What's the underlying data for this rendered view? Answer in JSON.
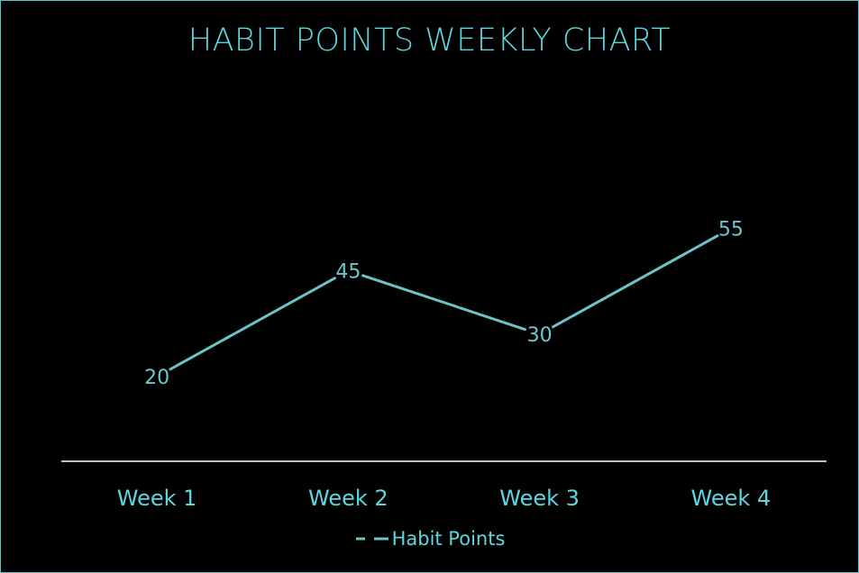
{
  "chart_data": {
    "type": "line",
    "title": "HABIT POINTS WEEKLY CHART",
    "categories": [
      "Week 1",
      "Week 2",
      "Week 3",
      "Week 4"
    ],
    "series": [
      {
        "name": "Habit Points",
        "values": [
          20,
          45,
          30,
          55
        ]
      }
    ],
    "ylim": [
      0,
      90
    ],
    "grid": false,
    "legend_position": "bottom",
    "data_labels": true,
    "colors": {
      "background": "#000000",
      "line": "#6cc3c6",
      "text": "#5cd7e0",
      "axis": "#ffffff",
      "border": "#5ec4c8"
    }
  }
}
